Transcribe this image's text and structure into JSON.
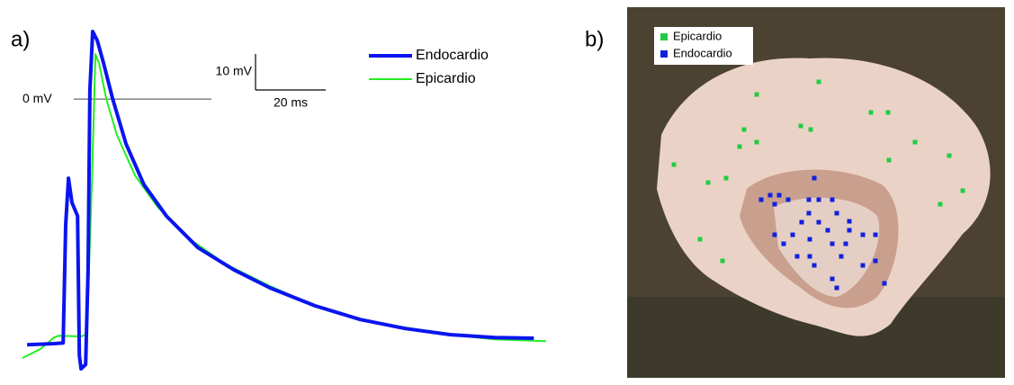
{
  "chart_data": [
    {
      "type": "line",
      "panel_label": "a)",
      "xlim": [
        -1.3,
        147.9
      ],
      "ylim": [
        -75,
        18.8
      ],
      "zero_line": {
        "value": 0,
        "label": "0 mV"
      },
      "scale_bar": {
        "y_size": 10,
        "y_label": "10 mV",
        "x_size": 20,
        "x_label": "20 ms"
      },
      "legend": "top-right",
      "series": [
        {
          "name": "Endocardio",
          "color": "#0a14f0",
          "width": 4,
          "x": [
            0,
            7.7,
            10.3,
            11.0,
            11.8,
            12.8,
            14.4,
            14.9,
            15.4,
            16.7,
            17.4,
            17.9,
            18.7,
            20.0,
            21.8,
            24.4,
            28.2,
            33.3,
            39.7,
            48.7,
            59.0,
            69.2,
            82.1,
            94.9,
            107.7,
            120.5,
            133.3,
            144.4
          ],
          "values": [
            -68.3,
            -68,
            -67.8,
            -35,
            -22,
            -28.8,
            -32.5,
            -71.3,
            -75,
            -73.8,
            -47.5,
            2.5,
            18.8,
            16.3,
            10,
            0,
            -12.5,
            -23.8,
            -32.5,
            -41.3,
            -47.5,
            -52.5,
            -57.5,
            -61.3,
            -63.8,
            -65.5,
            -66.3,
            -66.5
          ]
        },
        {
          "name": "Epicardio",
          "color": "#22ee22",
          "width": 2,
          "x": [
            -1.3,
            3.8,
            7.7,
            9.0,
            15.4,
            16.7,
            17.4,
            18.5,
            19.5,
            20.5,
            22.6,
            25.6,
            30.8,
            37.2,
            46.2,
            56.4,
            69.2,
            82.1,
            94.9,
            107.7,
            120.5,
            133.3,
            147.9
          ],
          "values": [
            -72,
            -69.5,
            -66.3,
            -65.8,
            -66,
            -65.5,
            -55,
            -22.5,
            12.5,
            10,
            0,
            -10,
            -21.3,
            -30,
            -38.8,
            -45.8,
            -52,
            -57.5,
            -61.3,
            -63.5,
            -65.5,
            -66.8,
            -67.3
          ]
        }
      ]
    },
    {
      "type": "scatter",
      "panel_label": "b)",
      "xlim": [
        0,
        420
      ],
      "ylim": [
        412,
        0
      ],
      "legend": "top-left",
      "series": [
        {
          "name": "Epicardio",
          "color": "#22cc44",
          "x": [
            144,
            213,
            271,
            290,
            130,
            193,
            204,
            144,
            125,
            320,
            52,
            110,
            90,
            358,
            291,
            373,
            348,
            81,
            106
          ],
          "values": [
            97,
            83,
            117,
            117,
            136,
            132,
            136,
            150,
            155,
            150,
            175,
            190,
            195,
            165,
            170,
            204,
            219,
            258,
            282
          ]
        },
        {
          "name": "Endocardio",
          "color": "#1020e0",
          "x": [
            208,
            159,
            169,
            149,
            179,
            164,
            202,
            213,
            228,
            202,
            233,
            194,
            213,
            164,
            184,
            223,
            247,
            262,
            276,
            247,
            174,
            203,
            228,
            243,
            189,
            238,
            203,
            208,
            262,
            276,
            228,
            286,
            233
          ],
          "values": [
            190,
            209,
            209,
            214,
            214,
            219,
            214,
            214,
            214,
            229,
            229,
            239,
            239,
            253,
            253,
            248,
            248,
            253,
            253,
            238,
            263,
            258,
            263,
            263,
            277,
            277,
            277,
            287,
            287,
            282,
            302,
            307,
            312
          ]
        }
      ]
    }
  ]
}
